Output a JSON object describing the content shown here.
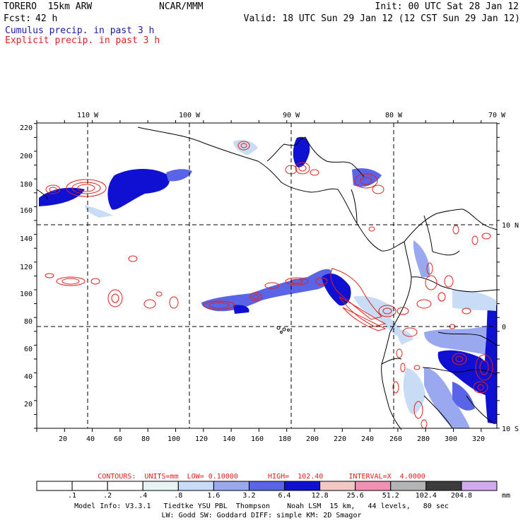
{
  "header": {
    "model": "TORERO  15km ARW",
    "org": "NCAR/MMM",
    "init": "Init: 00 UTC Sat 28 Jan 12",
    "fcst_label": "Fcst:",
    "fcst_value": "42 h",
    "valid": "Valid: 18 UTC Sun 29 Jan 12 (12 CST Sun 29 Jan 12)",
    "legend_cumulus": "Cumulus precip. in past 3 h",
    "legend_explicit": "Explicit precip. in past 3 h"
  },
  "colors": {
    "cumulus": "#1a1aa6",
    "explicit": "#e0201c",
    "coastline": "#000000"
  },
  "axes": {
    "top_longitudes": [
      "110 W",
      "100 W",
      "90 W",
      "80 W",
      "70 W"
    ],
    "right_latitudes": [
      "10 N",
      "0",
      "10 S"
    ],
    "left_ticks": [
      "220",
      "200",
      "180",
      "160",
      "140",
      "120",
      "100",
      "80",
      "60",
      "40",
      "20"
    ],
    "bottom_ticks": [
      "20",
      "40",
      "60",
      "80",
      "100",
      "120",
      "140",
      "160",
      "180",
      "200",
      "220",
      "240",
      "260",
      "280",
      "300",
      "320"
    ]
  },
  "contour_info": "CONTOURS:  UNITS=mm  LOW= 0.10000       HIGH=  102.40      INTERVAL=X  4.0000",
  "color_scale": {
    "unit": "mm",
    "thresholds": [
      ".1",
      ".2",
      ".4",
      ".8",
      "1.6",
      "3.2",
      "6.4",
      "12.8",
      "25.6",
      "51.2",
      "102.4",
      "204.8"
    ],
    "colors": [
      "#ffffff",
      "#ffffff",
      "#ffffff",
      "#e6f4f4",
      "#c8dcf5",
      "#9aa8f0",
      "#5a64e6",
      "#1010d2",
      "#f5c8c8",
      "#f090b4",
      "#b4b4b4",
      "#3c3c3c",
      "#d2aaf0"
    ]
  },
  "model_info": {
    "line1": "Model Info: V3.3.1   Tiedtke YSU PBL  Thompson    Noah LSM  15 km,   44 levels,   80 sec",
    "line2": "LW: Godd SW: Goddard DIFF: simple KM: 2D Smagor"
  }
}
